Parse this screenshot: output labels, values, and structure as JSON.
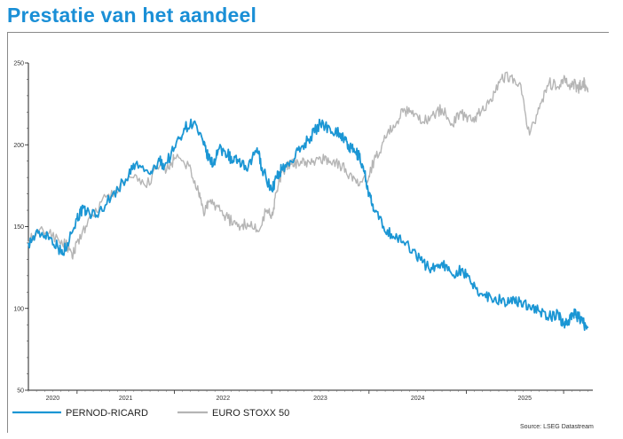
{
  "title": "Prestatie van het aandeel",
  "source": "Source: LSEG Datastream",
  "chart_data": {
    "type": "line",
    "title": "Prestatie van het aandeel",
    "xlabel": "",
    "ylabel": "",
    "ylim": [
      50,
      250
    ],
    "yticks": [
      50,
      100,
      150,
      200,
      250
    ],
    "xticks": [
      "2020",
      "2021",
      "2022",
      "2023",
      "2024",
      "2025"
    ],
    "xlim": [
      2019.5,
      2025.3
    ],
    "grid": false,
    "legend": "bottom-left",
    "series": [
      {
        "name": "PERNOD-RICARD",
        "color": "#1b96d4",
        "x": [
          2019.5,
          2019.6,
          2019.7,
          2019.8,
          2019.85,
          2019.9,
          2020.0,
          2020.05,
          2020.1,
          2020.2,
          2020.35,
          2020.5,
          2020.6,
          2020.75,
          2020.85,
          2020.9,
          2021.0,
          2021.1,
          2021.2,
          2021.3,
          2021.35,
          2021.4,
          2021.45,
          2021.55,
          2021.6,
          2021.65,
          2021.75,
          2021.85,
          2021.9,
          2022.0,
          2022.05,
          2022.1,
          2022.2,
          2022.3,
          2022.4,
          2022.5,
          2022.6,
          2022.7,
          2022.75,
          2022.8,
          2022.85,
          2022.9,
          2022.95,
          2023.0,
          2023.05,
          2023.15,
          2023.25,
          2023.35,
          2023.45,
          2023.55,
          2023.65,
          2023.75,
          2023.85,
          2023.95,
          2024.05,
          2024.15,
          2024.25,
          2024.35,
          2024.45,
          2024.55,
          2024.65,
          2024.75,
          2024.85,
          2024.95,
          2025.0,
          2025.05,
          2025.1,
          2025.15,
          2025.2,
          2025.25
        ],
        "values": [
          140,
          146,
          145,
          138,
          133,
          140,
          155,
          160,
          159,
          157,
          168,
          179,
          188,
          182,
          190,
          187,
          198,
          210,
          214,
          200,
          192,
          188,
          197,
          195,
          189,
          191,
          184,
          198,
          186,
          172,
          180,
          185,
          190,
          198,
          205,
          213,
          210,
          207,
          203,
          198,
          196,
          193,
          184,
          170,
          160,
          150,
          144,
          141,
          136,
          128,
          124,
          128,
          121,
          124,
          115,
          109,
          107,
          105,
          104,
          104,
          102,
          98,
          95,
          96,
          90,
          93,
          97,
          95,
          91,
          88
        ]
      },
      {
        "name": "EURO STOXX 50",
        "color": "#b5b5b5",
        "x": [
          2019.5,
          2019.65,
          2019.8,
          2019.9,
          2019.95,
          2020.0,
          2020.1,
          2020.25,
          2020.4,
          2020.55,
          2020.7,
          2020.85,
          2020.95,
          2021.0,
          2021.15,
          2021.25,
          2021.3,
          2021.35,
          2021.45,
          2021.55,
          2021.65,
          2021.75,
          2021.85,
          2021.95,
          2022.0,
          2022.05,
          2022.1,
          2022.2,
          2022.3,
          2022.4,
          2022.5,
          2022.6,
          2022.7,
          2022.8,
          2022.9,
          2023.0,
          2023.05,
          2023.15,
          2023.25,
          2023.35,
          2023.45,
          2023.55,
          2023.65,
          2023.75,
          2023.85,
          2023.95,
          2024.05,
          2024.15,
          2024.25,
          2024.35,
          2024.45,
          2024.55,
          2024.65,
          2024.75,
          2024.85,
          2024.95,
          2025.0,
          2025.05,
          2025.1,
          2025.15,
          2025.2,
          2025.25
        ],
        "values": [
          141,
          148,
          143,
          138,
          131,
          141,
          150,
          165,
          172,
          180,
          175,
          187,
          185,
          192,
          187,
          170,
          158,
          165,
          162,
          155,
          150,
          152,
          148,
          160,
          157,
          171,
          183,
          188,
          190,
          188,
          192,
          190,
          188,
          182,
          175,
          181,
          190,
          202,
          212,
          220,
          221,
          214,
          218,
          222,
          213,
          219,
          215,
          220,
          228,
          240,
          242,
          238,
          206,
          222,
          238,
          235,
          240,
          236,
          238,
          234,
          239,
          232
        ]
      }
    ]
  }
}
